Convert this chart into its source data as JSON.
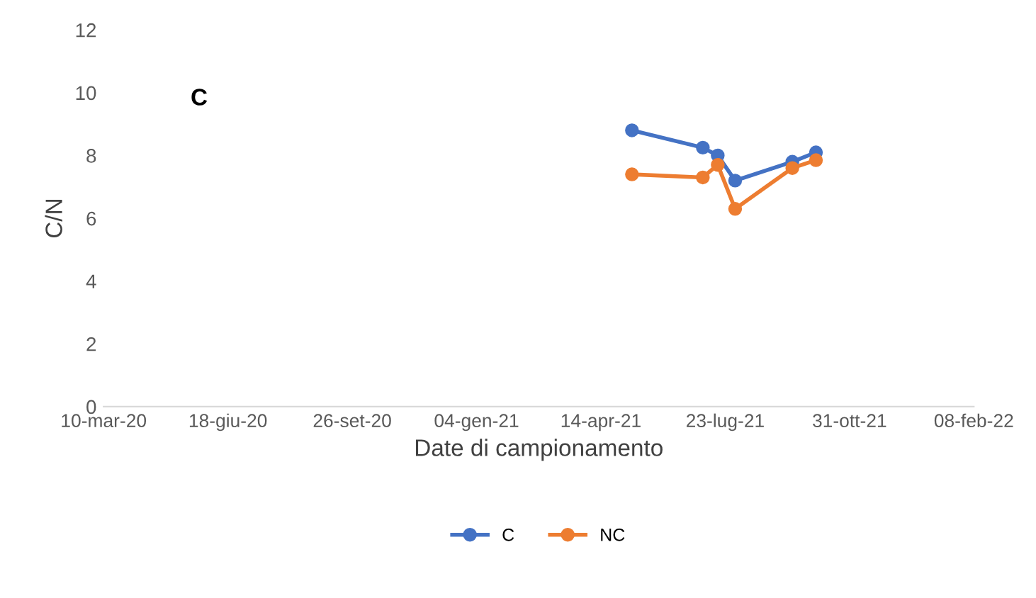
{
  "chart_data": {
    "type": "line",
    "xlabel": "Date di campionamento",
    "ylabel": "C/N",
    "annotations": [
      "C"
    ],
    "x": [
      "2021-05-09",
      "2021-07-05",
      "2021-07-17",
      "2021-07-31",
      "2021-09-15",
      "2021-10-04"
    ],
    "series": [
      {
        "name": "C",
        "color": "#4472c4",
        "values": [
          8.8,
          8.25,
          8.0,
          7.2,
          7.8,
          8.1
        ]
      },
      {
        "name": "NC",
        "color": "#ed7d31",
        "values": [
          7.4,
          7.3,
          7.7,
          6.3,
          7.6,
          7.85
        ]
      }
    ],
    "xlim": [
      "2020-03-10",
      "2022-02-08"
    ],
    "xticks": [
      {
        "value": "2020-03-10",
        "label": "10-mar-20"
      },
      {
        "value": "2020-06-18",
        "label": "18-giu-20"
      },
      {
        "value": "2020-09-26",
        "label": "26-set-20"
      },
      {
        "value": "2021-01-04",
        "label": "04-gen-21"
      },
      {
        "value": "2021-04-14",
        "label": "14-apr-21"
      },
      {
        "value": "2021-07-23",
        "label": "23-lug-21"
      },
      {
        "value": "2021-10-31",
        "label": "31-ott-21"
      },
      {
        "value": "2022-02-08",
        "label": "08-feb-22"
      }
    ],
    "ylim": [
      0,
      12
    ],
    "yticks": [
      0,
      2,
      4,
      6,
      8,
      10,
      12
    ],
    "grid": false,
    "legend": "bottom",
    "marker": "circle",
    "line_style": "solid"
  }
}
